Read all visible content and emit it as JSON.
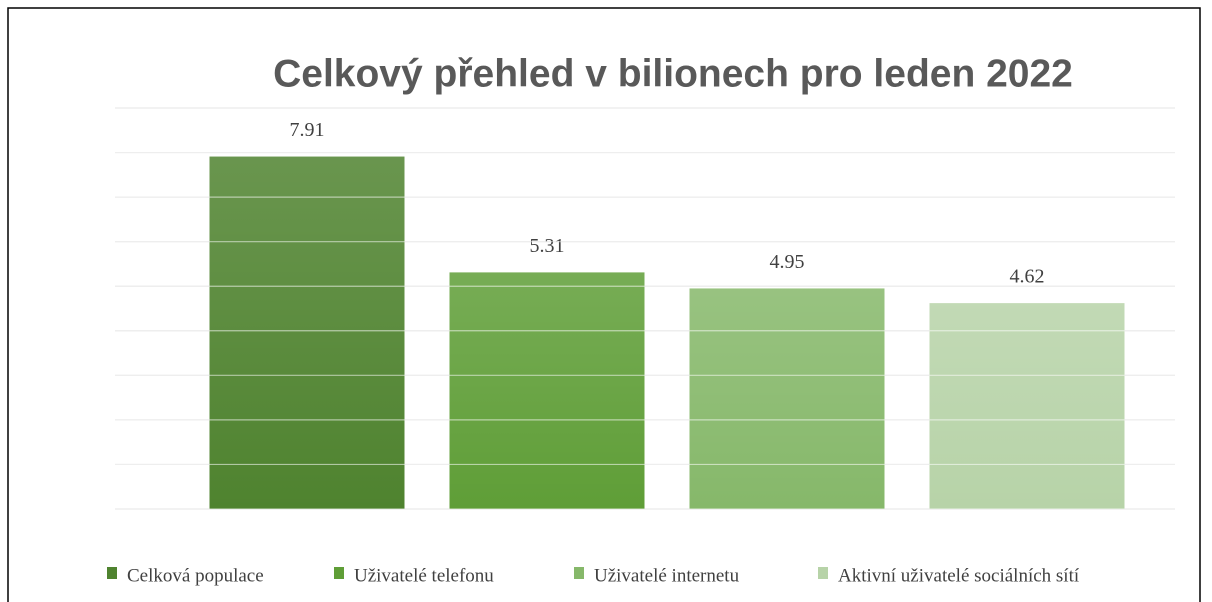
{
  "chart_data": {
    "type": "bar",
    "title": "Celkový přehled v bilionech pro leden 2022",
    "categories": [
      "Celková populace",
      "Uživatelé telefonu",
      "Uživatelé internetu",
      "Aktivní uživatelé sociálních sítí"
    ],
    "values": [
      7.91,
      5.31,
      4.95,
      4.62
    ],
    "colors": [
      "#4f832f",
      "#5f9e37",
      "#86b86a",
      "#b7d3a8"
    ],
    "ylim": [
      0,
      9
    ],
    "yticks": [
      0,
      1,
      2,
      3,
      4,
      5,
      6,
      7,
      8,
      9
    ],
    "grid": true,
    "legend": "bottom"
  }
}
